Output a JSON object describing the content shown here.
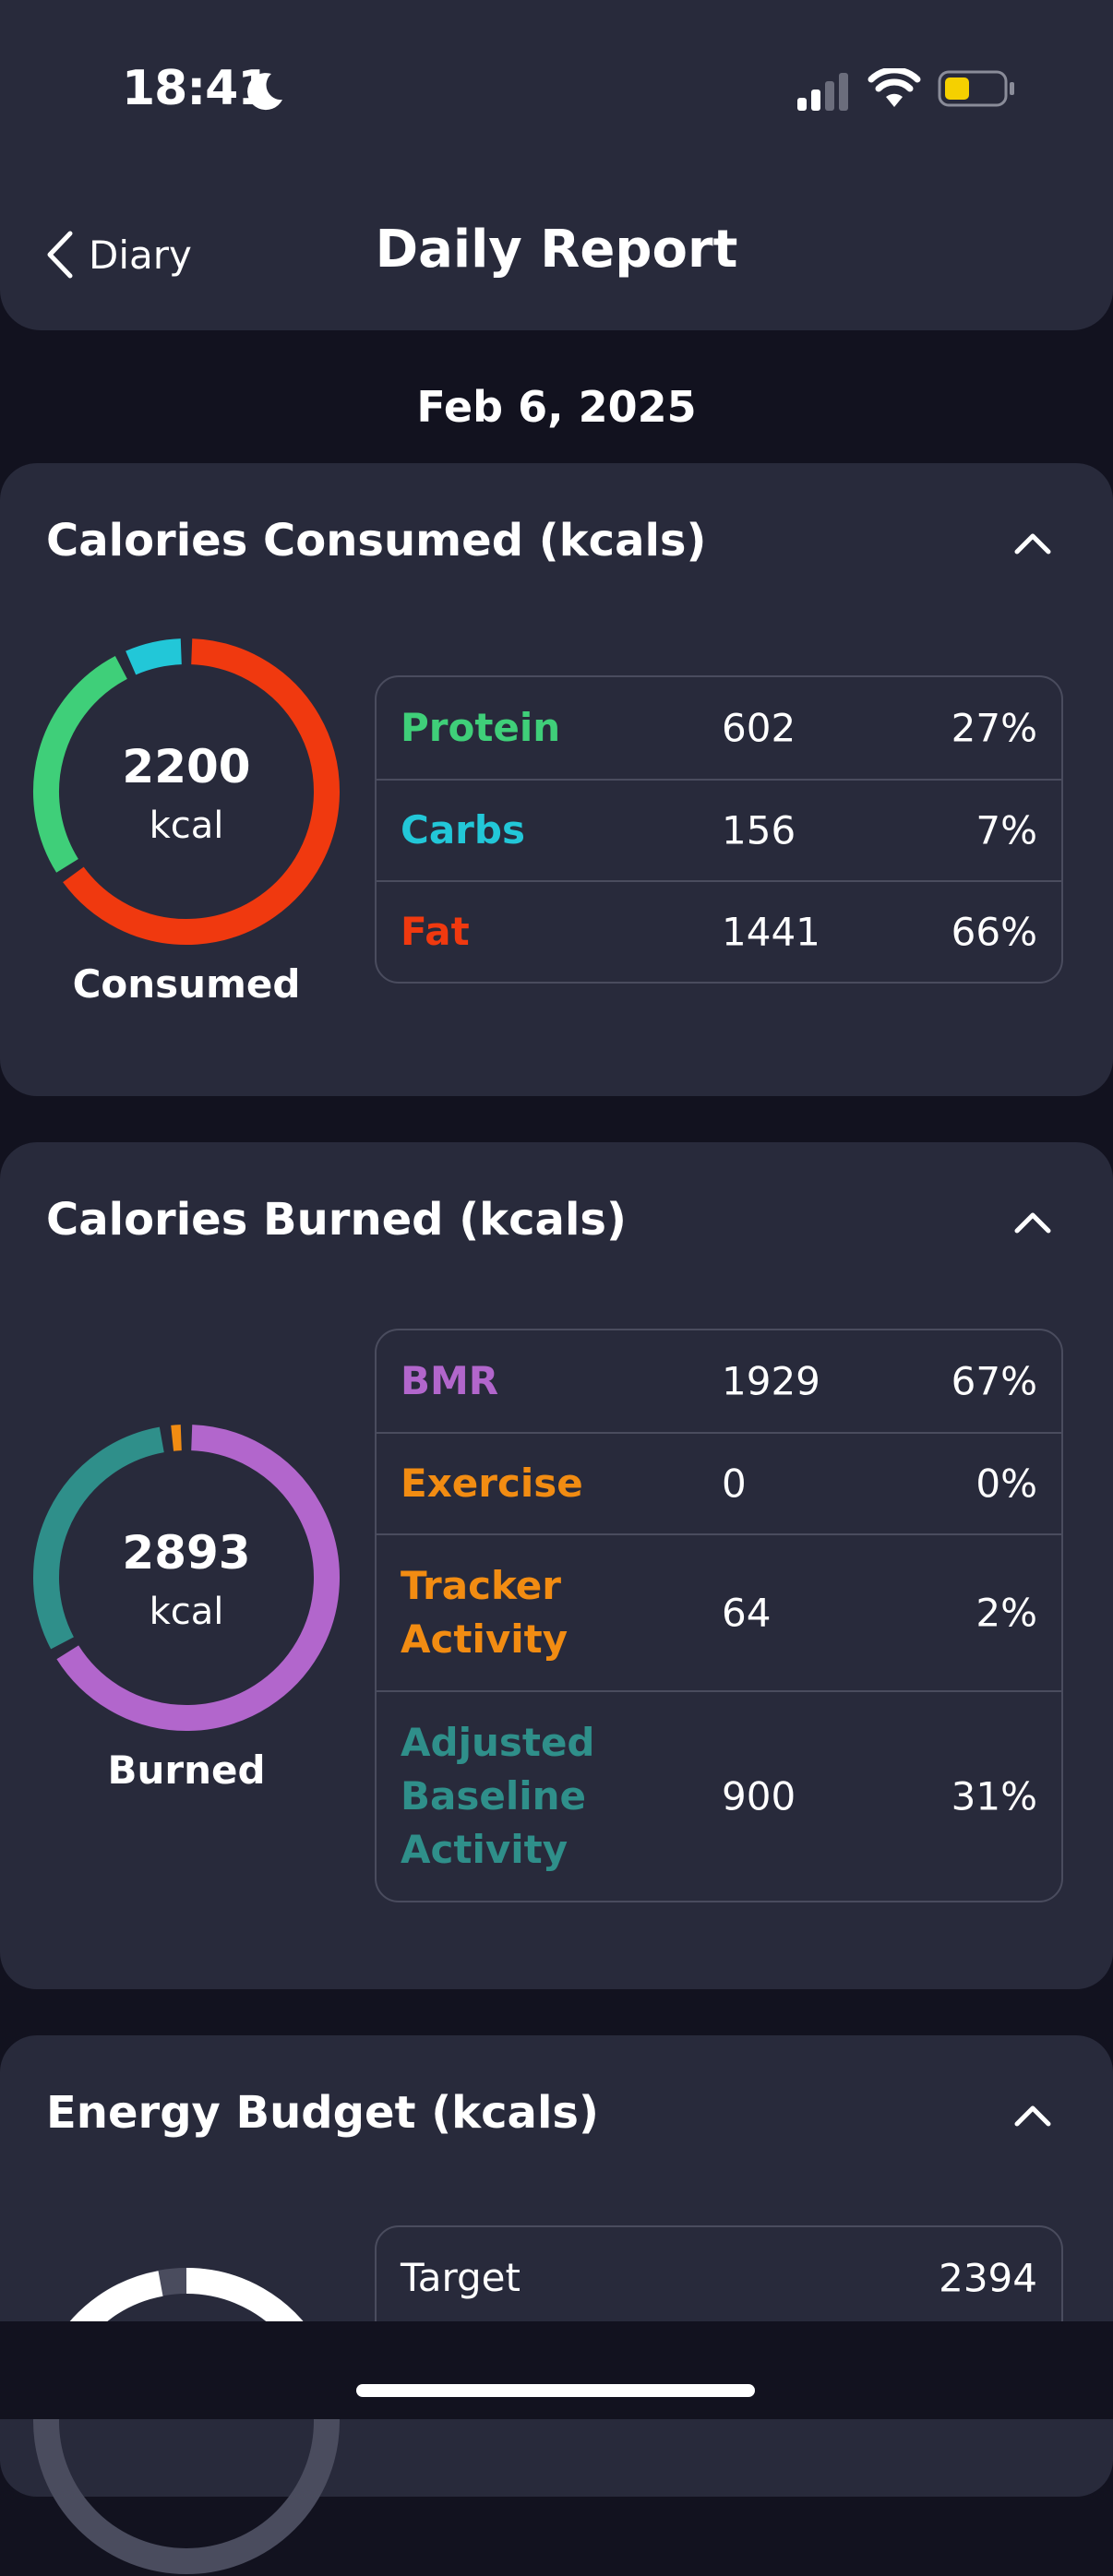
{
  "status_bar": {
    "time": "18:41",
    "icons": [
      "moon-icon",
      "cellular-signal-icon",
      "wifi-icon",
      "battery-icon"
    ]
  },
  "nav": {
    "back_label": "Diary",
    "title": "Daily Report"
  },
  "date": "Feb 6, 2025",
  "colors": {
    "protein": "#3fcf79",
    "carbs": "#22c7d8",
    "fat": "#f0390f",
    "bmr": "#b266cc",
    "exercise": "#f28c12",
    "tracker": "#f28c12",
    "baseline": "#2f8f8a"
  },
  "consumed": {
    "title": "Calories Consumed (kcals)",
    "total": "2200",
    "unit": "kcal",
    "caption": "Consumed",
    "rows": [
      {
        "name": "Protein",
        "value": "602",
        "pct": "27%"
      },
      {
        "name": "Carbs",
        "value": "156",
        "pct": "7%"
      },
      {
        "name": "Fat",
        "value": "1441",
        "pct": "66%"
      }
    ]
  },
  "burned": {
    "title": "Calories Burned (kcals)",
    "total": "2893",
    "unit": "kcal",
    "caption": "Burned",
    "rows": [
      {
        "name": "BMR",
        "value": "1929",
        "pct": "67%"
      },
      {
        "name": "Exercise",
        "value": "0",
        "pct": "0%"
      },
      {
        "name": "Tracker Activity",
        "value": "64",
        "pct": "2%"
      },
      {
        "name": "Adjusted Baseline Activity",
        "value": "900",
        "pct": "31%"
      }
    ]
  },
  "budget": {
    "title": "Energy Budget (kcals)",
    "rows": [
      {
        "name": "Target",
        "value": "2394"
      }
    ]
  }
}
